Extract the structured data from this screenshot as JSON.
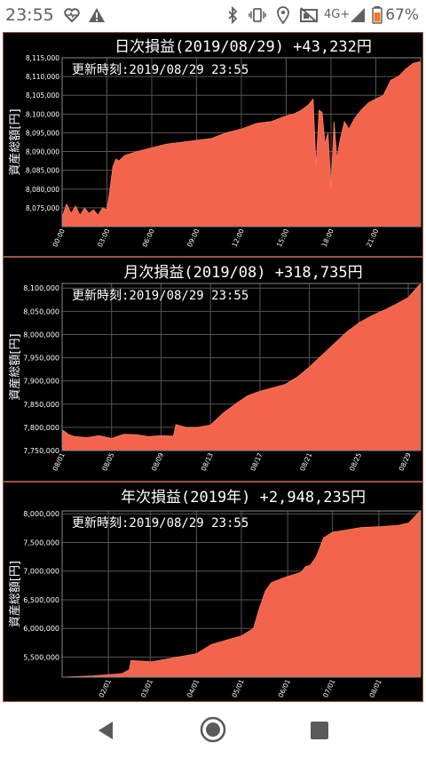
{
  "status_bar": {
    "time": "23:55",
    "network": "4G+",
    "battery_pct": "67%",
    "icons": [
      "heart-pulse-icon",
      "warning-icon",
      "bluetooth-icon",
      "vibrate-icon",
      "location-icon",
      "cast-off-icon",
      "signal-icon",
      "battery-icon"
    ]
  },
  "colors": {
    "fill": "#f2654c",
    "panel_bg": "#000000",
    "grid": "#555555",
    "text": "#ffffff"
  },
  "charts": [
    {
      "title": "日次損益(2019/08/29) +43,232円",
      "updated": "更新時刻:2019/08/29 23:55",
      "ylabel": "資産総額[円]",
      "chart_data": {
        "type": "area",
        "ylim": [
          8070000,
          8115000
        ],
        "xlim": [
          0,
          24
        ],
        "yticks": [
          "8,075,000",
          "8,080,000",
          "8,085,000",
          "8,090,000",
          "8,095,000",
          "8,100,000",
          "8,105,000",
          "8,110,000",
          "8,115,000"
        ],
        "ytick_values": [
          8075000,
          8080000,
          8085000,
          8090000,
          8095000,
          8100000,
          8105000,
          8110000,
          8115000
        ],
        "xticks": [
          "00:00",
          "03:00",
          "06:00",
          "09:00",
          "12:00",
          "15:00",
          "18:00",
          "21:00"
        ],
        "xtick_values": [
          0,
          3,
          6,
          9,
          12,
          15,
          18,
          21
        ],
        "x": [
          0,
          0.3,
          0.6,
          0.9,
          1.2,
          1.5,
          1.8,
          2.1,
          2.4,
          2.7,
          3.0,
          3.2,
          3.4,
          3.6,
          3.8,
          4.2,
          5,
          6,
          7,
          8,
          9,
          10,
          11,
          12,
          13,
          14,
          15,
          15.5,
          16,
          16.5,
          16.8,
          17,
          17.2,
          17.4,
          17.6,
          17.8,
          18.0,
          18.2,
          18.4,
          18.6,
          18.9,
          19.2,
          19.6,
          20,
          20.5,
          21,
          21.5,
          22,
          22.5,
          23,
          23.5,
          24
        ],
        "y": [
          8072500,
          8076000,
          8073500,
          8075500,
          8073000,
          8075000,
          8073500,
          8074500,
          8073000,
          8075000,
          8074500,
          8080000,
          8086000,
          8088000,
          8087500,
          8089000,
          8090000,
          8091000,
          8092000,
          8092500,
          8093000,
          8093500,
          8095000,
          8096000,
          8097500,
          8098000,
          8099500,
          8100000,
          8101000,
          8102500,
          8104000,
          8086000,
          8101000,
          8100500,
          8092000,
          8095000,
          8080000,
          8098000,
          8088000,
          8093000,
          8098000,
          8096000,
          8099000,
          8101000,
          8103000,
          8104000,
          8105000,
          8109000,
          8110000,
          8112000,
          8113500,
          8114000
        ]
      }
    },
    {
      "title": "月次損益(2019/08) +318,735円",
      "updated": "更新時刻:2019/08/29 23:55",
      "ylabel": "資産総額[円]",
      "chart_data": {
        "type": "area",
        "ylim": [
          7750000,
          8110000
        ],
        "xlim": [
          1,
          30
        ],
        "yticks": [
          "7,750,000",
          "7,800,000",
          "7,850,000",
          "7,900,000",
          "7,950,000",
          "8,000,000",
          "8,050,000",
          "8,100,000"
        ],
        "ytick_values": [
          7750000,
          7800000,
          7850000,
          7900000,
          7950000,
          8000000,
          8050000,
          8100000
        ],
        "xticks": [
          "08/01",
          "08/05",
          "08/09",
          "08/13",
          "08/17",
          "08/21",
          "08/25",
          "08/29"
        ],
        "xtick_values": [
          1,
          5,
          9,
          13,
          17,
          21,
          25,
          29
        ],
        "x": [
          1,
          1.5,
          2,
          3,
          4,
          5,
          6,
          7,
          8,
          9,
          10,
          10.2,
          11,
          12,
          13,
          14,
          15,
          16,
          17,
          18,
          19,
          20,
          21,
          22,
          23,
          24,
          25,
          26,
          27,
          28,
          29,
          30
        ],
        "y": [
          7795000,
          7785000,
          7780000,
          7778000,
          7782000,
          7776000,
          7785000,
          7784000,
          7780000,
          7782000,
          7781000,
          7806000,
          7800000,
          7800000,
          7805000,
          7830000,
          7850000,
          7868000,
          7878000,
          7885000,
          7892000,
          7908000,
          7930000,
          7955000,
          7980000,
          8005000,
          8025000,
          8040000,
          8052000,
          8065000,
          8080000,
          8110000
        ]
      }
    },
    {
      "title": "年次損益(2019年) +2,948,235円",
      "updated": "更新時刻:2019/08/29 23:55",
      "ylabel": "資産総額[円]",
      "chart_data": {
        "type": "area",
        "ylim": [
          5150000,
          8050000
        ],
        "xlim": [
          0,
          240
        ],
        "yticks": [
          "5,500,000",
          "6,000,000",
          "6,500,000",
          "7,000,000",
          "7,500,000",
          "8,000,000"
        ],
        "ytick_values": [
          5500000,
          6000000,
          6500000,
          7000000,
          7500000,
          8000000
        ],
        "xticks": [
          "02/01",
          "03/01",
          "04/01",
          "05/01",
          "06/01",
          "07/01",
          "08/01"
        ],
        "xtick_values": [
          31,
          59,
          90,
          120,
          151,
          181,
          212
        ],
        "x": [
          0,
          20,
          40,
          45,
          46,
          60,
          90,
          100,
          120,
          128,
          132,
          136,
          140,
          150,
          160,
          163,
          166,
          170,
          175,
          181,
          200,
          215,
          225,
          232,
          236,
          240
        ],
        "y": [
          5150000,
          5170000,
          5210000,
          5280000,
          5440000,
          5420000,
          5560000,
          5720000,
          5870000,
          6000000,
          6350000,
          6650000,
          6800000,
          6900000,
          6980000,
          7080000,
          7100000,
          7250000,
          7580000,
          7680000,
          7760000,
          7780000,
          7800000,
          7840000,
          7950000,
          8060000
        ]
      }
    }
  ]
}
